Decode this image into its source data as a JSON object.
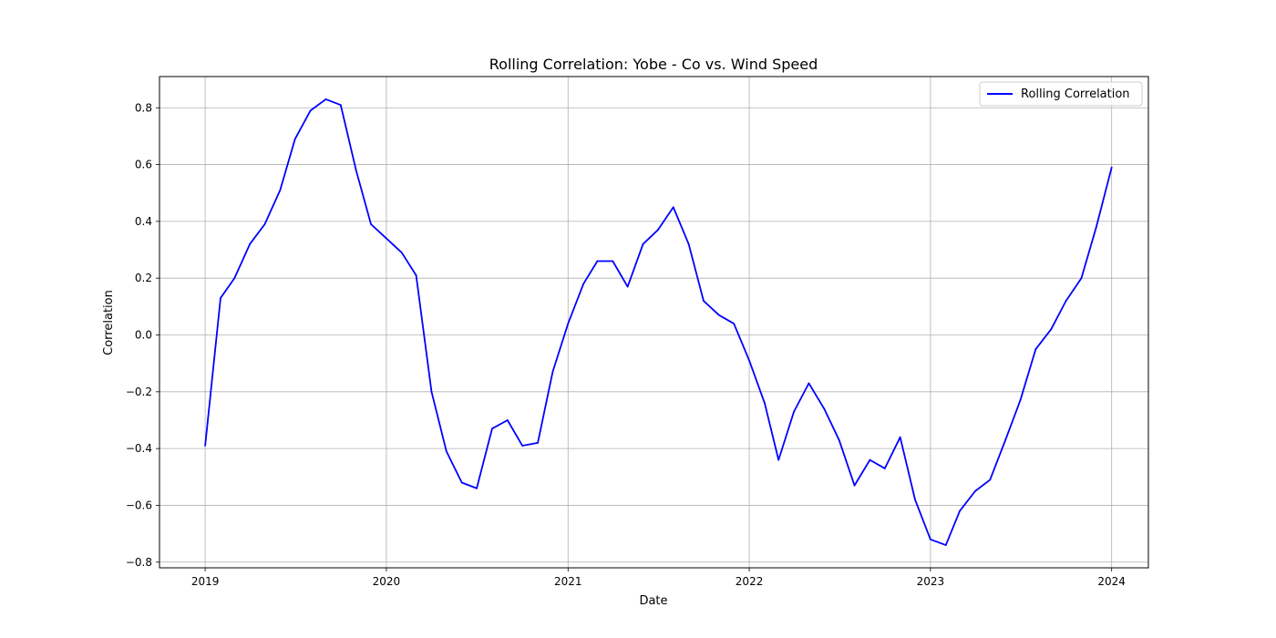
{
  "chart_data": {
    "type": "line",
    "title": "Rolling Correlation: Yobe - Co vs. Wind Speed",
    "xlabel": "Date",
    "ylabel": "Correlation",
    "xlim": [
      "2018-10-01",
      "2024-03-15"
    ],
    "ylim": [
      -0.82,
      0.91
    ],
    "x_ticks": [
      "2019",
      "2020",
      "2021",
      "2022",
      "2023",
      "2024"
    ],
    "y_ticks": [
      -0.8,
      -0.6,
      -0.4,
      -0.2,
      0.0,
      0.2,
      0.4,
      0.6,
      0.8
    ],
    "y_tick_labels": [
      "−0.8",
      "−0.6",
      "−0.4",
      "−0.2",
      "0.0",
      "0.2",
      "0.4",
      "0.6",
      "0.8"
    ],
    "grid": true,
    "legend_position": "top-right",
    "series": [
      {
        "name": "Rolling Correlation",
        "color": "#0000ff",
        "x": [
          "2019-01-01",
          "2019-02-01",
          "2019-03-01",
          "2019-04-01",
          "2019-05-01",
          "2019-06-01",
          "2019-07-01",
          "2019-08-01",
          "2019-09-01",
          "2019-10-01",
          "2019-11-01",
          "2019-12-01",
          "2020-01-01",
          "2020-02-01",
          "2020-03-01",
          "2020-04-01",
          "2020-05-01",
          "2020-06-01",
          "2020-07-01",
          "2020-08-01",
          "2020-09-01",
          "2020-10-01",
          "2020-11-01",
          "2020-12-01",
          "2021-01-01",
          "2021-02-01",
          "2021-03-01",
          "2021-04-01",
          "2021-05-01",
          "2021-06-01",
          "2021-07-01",
          "2021-08-01",
          "2021-09-01",
          "2021-10-01",
          "2021-11-01",
          "2021-12-01",
          "2022-01-01",
          "2022-02-01",
          "2022-03-01",
          "2022-04-01",
          "2022-05-01",
          "2022-06-01",
          "2022-07-01",
          "2022-08-01",
          "2022-09-01",
          "2022-10-01",
          "2022-11-01",
          "2022-12-01",
          "2023-01-01",
          "2023-02-01",
          "2023-03-01",
          "2023-04-01",
          "2023-05-01",
          "2023-06-01",
          "2023-07-01",
          "2023-08-01",
          "2023-09-01",
          "2023-10-01",
          "2023-11-01",
          "2023-12-01",
          "2024-01-01"
        ],
        "values": [
          -0.39,
          0.13,
          0.2,
          0.32,
          0.39,
          0.51,
          0.69,
          0.79,
          0.83,
          0.81,
          0.58,
          0.39,
          0.34,
          0.29,
          0.21,
          -0.2,
          -0.41,
          -0.52,
          -0.54,
          -0.33,
          -0.3,
          -0.39,
          -0.38,
          -0.13,
          0.04,
          0.18,
          0.26,
          0.26,
          0.17,
          0.32,
          0.37,
          0.45,
          0.32,
          0.12,
          0.07,
          0.04,
          -0.09,
          -0.24,
          -0.44,
          -0.27,
          -0.17,
          -0.26,
          -0.37,
          -0.53,
          -0.44,
          -0.47,
          -0.36,
          -0.58,
          -0.72,
          -0.74,
          -0.62,
          -0.55,
          -0.51,
          -0.37,
          -0.23,
          -0.05,
          0.02,
          0.12,
          0.2,
          0.38,
          0.59
        ]
      }
    ]
  }
}
